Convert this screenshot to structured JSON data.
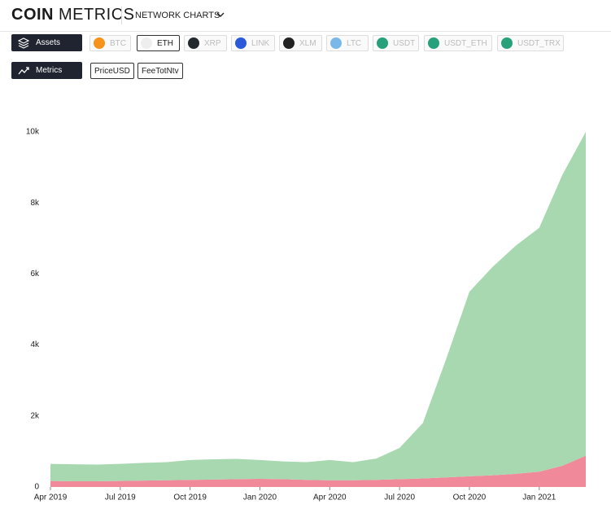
{
  "header": {
    "logo_bold": "COIN",
    "logo_light": "METRICS",
    "nav": "NETWORK CHARTS"
  },
  "toolbar": {
    "assets_button": "Assets",
    "assets": [
      "BTC",
      "ETH",
      "XRP",
      "LINK",
      "XLM",
      "LTC",
      "USDT",
      "USDT_ETH",
      "USDT_TRX"
    ],
    "metrics_button": "Metrics",
    "metrics": [
      "PriceUSD",
      "FeeTotNtv"
    ]
  },
  "chart_data": {
    "type": "area",
    "stacked": true,
    "x": [
      "2019-04",
      "2019-05",
      "2019-06",
      "2019-07",
      "2019-08",
      "2019-09",
      "2019-10",
      "2019-11",
      "2019-12",
      "2020-01",
      "2020-02",
      "2020-03",
      "2020-04",
      "2020-05",
      "2020-06",
      "2020-07",
      "2020-08",
      "2020-09",
      "2020-10",
      "2020-11",
      "2020-12",
      "2021-01",
      "2021-02",
      "2021-03"
    ],
    "series": [
      {
        "color": "#f08a9a",
        "values": [
          170,
          160,
          160,
          170,
          180,
          190,
          200,
          210,
          220,
          230,
          220,
          200,
          190,
          190,
          200,
          220,
          240,
          270,
          300,
          330,
          370,
          430,
          600,
          880
        ]
      },
      {
        "color": "#a8d8b0",
        "values": [
          480,
          480,
          470,
          480,
          500,
          510,
          560,
          570,
          570,
          530,
          500,
          500,
          570,
          510,
          600,
          880,
          1560,
          3330,
          5200,
          5870,
          6430,
          6870,
          8200,
          9120
        ]
      }
    ],
    "xlim": [
      "2019-04",
      "2021-03"
    ],
    "xticks": [
      {
        "value": "2019-04",
        "label": "Apr 2019"
      },
      {
        "value": "2019-07",
        "label": "Jul 2019"
      },
      {
        "value": "2019-10",
        "label": "Oct 2019"
      },
      {
        "value": "2020-01",
        "label": "Jan 2020"
      },
      {
        "value": "2020-04",
        "label": "Apr 2020"
      },
      {
        "value": "2020-07",
        "label": "Jul 2020"
      },
      {
        "value": "2020-10",
        "label": "Oct 2020"
      },
      {
        "value": "2021-01",
        "label": "Jan 2021"
      }
    ],
    "ylim": [
      0,
      10000
    ],
    "yticks": [
      0,
      {
        "value": 2000,
        "label": "2k"
      },
      {
        "value": 4000,
        "label": "4k"
      },
      {
        "value": 6000,
        "label": "6k"
      },
      {
        "value": 8000,
        "label": "8k"
      },
      {
        "value": 10000,
        "label": "10k"
      }
    ],
    "grid": false
  }
}
